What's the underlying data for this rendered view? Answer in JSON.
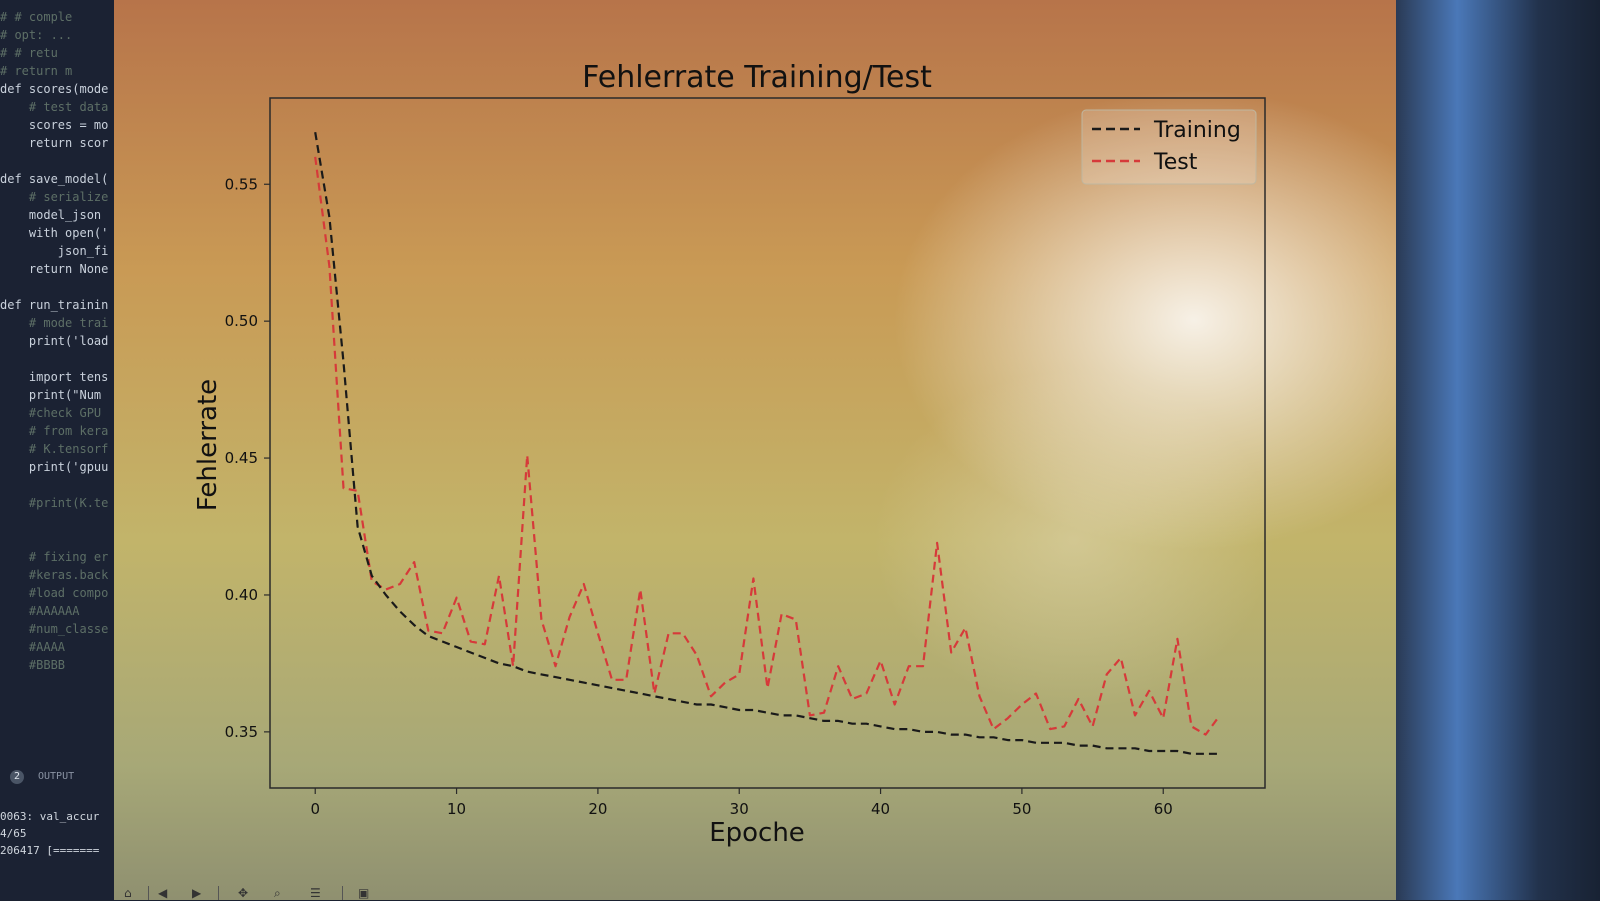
{
  "editor": {
    "lines": [
      {
        "text": "# # comple",
        "kind": "comment"
      },
      {
        "text": "# opt: ...",
        "kind": "comment"
      },
      {
        "text": "# # retu",
        "kind": "comment"
      },
      {
        "text": "# return m",
        "kind": "comment"
      },
      {
        "text": "def scores(mode",
        "kind": "code"
      },
      {
        "text": "    # test data",
        "kind": "comment"
      },
      {
        "text": "    scores = mo",
        "kind": "code"
      },
      {
        "text": "    return scor",
        "kind": "code"
      },
      {
        "text": "",
        "kind": "code"
      },
      {
        "text": "def save_model(",
        "kind": "code"
      },
      {
        "text": "    # serialize",
        "kind": "comment"
      },
      {
        "text": "    model_json ",
        "kind": "code"
      },
      {
        "text": "    with open('",
        "kind": "code"
      },
      {
        "text": "        json_fi",
        "kind": "code"
      },
      {
        "text": "    return None",
        "kind": "code"
      },
      {
        "text": "",
        "kind": "code"
      },
      {
        "text": "def run_trainin",
        "kind": "code"
      },
      {
        "text": "    # mode trai",
        "kind": "comment"
      },
      {
        "text": "    print('load",
        "kind": "code"
      },
      {
        "text": "",
        "kind": "code"
      },
      {
        "text": "    import tens",
        "kind": "code"
      },
      {
        "text": "    print(\"Num ",
        "kind": "code"
      },
      {
        "text": "    #check GPU ",
        "kind": "comment"
      },
      {
        "text": "    # from kera",
        "kind": "comment"
      },
      {
        "text": "    # K.tensorf",
        "kind": "comment"
      },
      {
        "text": "    print('gpuu",
        "kind": "code"
      },
      {
        "text": "",
        "kind": "code"
      },
      {
        "text": "    #print(K.te",
        "kind": "comment"
      },
      {
        "text": "",
        "kind": "code"
      },
      {
        "text": "",
        "kind": "code"
      },
      {
        "text": "    # fixing er",
        "kind": "comment"
      },
      {
        "text": "    #keras.back",
        "kind": "comment"
      },
      {
        "text": "    #load compo",
        "kind": "comment"
      },
      {
        "text": "    #AAAAAA",
        "kind": "comment"
      },
      {
        "text": "    #num_classe",
        "kind": "comment"
      },
      {
        "text": "    #AAAA",
        "kind": "comment"
      },
      {
        "text": "    #BBBB",
        "kind": "comment"
      }
    ]
  },
  "panel": {
    "badge": "2",
    "tab_label": "OUTPUT"
  },
  "terminal": {
    "lines": [
      "0063: val_accur",
      "4/65",
      "206417 [======="
    ]
  },
  "chart_data": {
    "type": "line",
    "title": "Fehlerrate Training/Test",
    "xlabel": "Epoche",
    "ylabel": "Fehlerrate",
    "xlim": [
      -3.2,
      67.2
    ],
    "ylim": [
      0.3295,
      0.5815
    ],
    "xticks": [
      0,
      10,
      20,
      30,
      40,
      50,
      60
    ],
    "yticks": [
      0.35,
      0.4,
      0.45,
      0.5,
      0.55
    ],
    "xtick_labels": [
      "0",
      "10",
      "20",
      "30",
      "40",
      "50",
      "60"
    ],
    "ytick_labels": [
      "0.35",
      "0.40",
      "0.45",
      "0.50",
      "0.55"
    ],
    "legend_position": "top-right",
    "grid": false,
    "series": [
      {
        "name": "Training",
        "color": "#1a1a1a",
        "dash": "dashed",
        "x": [
          0,
          1,
          2,
          3,
          4,
          5,
          6,
          7,
          8,
          9,
          10,
          11,
          12,
          13,
          14,
          15,
          16,
          17,
          18,
          19,
          20,
          21,
          22,
          23,
          24,
          25,
          26,
          27,
          28,
          29,
          30,
          31,
          32,
          33,
          34,
          35,
          36,
          37,
          38,
          39,
          40,
          41,
          42,
          43,
          44,
          45,
          46,
          47,
          48,
          49,
          50,
          51,
          52,
          53,
          54,
          55,
          56,
          57,
          58,
          59,
          60,
          61,
          62,
          63,
          64
        ],
        "values": [
          0.569,
          0.538,
          0.485,
          0.425,
          0.407,
          0.4,
          0.394,
          0.389,
          0.385,
          0.383,
          0.381,
          0.379,
          0.377,
          0.375,
          0.374,
          0.372,
          0.371,
          0.37,
          0.369,
          0.368,
          0.367,
          0.366,
          0.365,
          0.364,
          0.363,
          0.362,
          0.361,
          0.36,
          0.36,
          0.359,
          0.358,
          0.358,
          0.357,
          0.356,
          0.356,
          0.355,
          0.354,
          0.354,
          0.353,
          0.353,
          0.352,
          0.351,
          0.351,
          0.35,
          0.35,
          0.349,
          0.349,
          0.348,
          0.348,
          0.347,
          0.347,
          0.346,
          0.346,
          0.346,
          0.345,
          0.345,
          0.344,
          0.344,
          0.344,
          0.343,
          0.343,
          0.343,
          0.342,
          0.342,
          0.342
        ]
      },
      {
        "name": "Test",
        "color": "#d63a3a",
        "dash": "dashed",
        "x": [
          0,
          1,
          2,
          3,
          4,
          5,
          6,
          7,
          8,
          9,
          10,
          11,
          12,
          13,
          14,
          15,
          16,
          17,
          18,
          19,
          20,
          21,
          22,
          23,
          24,
          25,
          26,
          27,
          28,
          29,
          30,
          31,
          32,
          33,
          34,
          35,
          36,
          37,
          38,
          39,
          40,
          41,
          42,
          43,
          44,
          45,
          46,
          47,
          48,
          49,
          50,
          51,
          52,
          53,
          54,
          55,
          56,
          57,
          58,
          59,
          60,
          61,
          62,
          63,
          64
        ],
        "values": [
          0.56,
          0.52,
          0.439,
          0.438,
          0.405,
          0.402,
          0.404,
          0.412,
          0.387,
          0.386,
          0.399,
          0.383,
          0.382,
          0.407,
          0.374,
          0.451,
          0.391,
          0.374,
          0.392,
          0.404,
          0.386,
          0.369,
          0.369,
          0.402,
          0.364,
          0.386,
          0.386,
          0.378,
          0.363,
          0.368,
          0.371,
          0.406,
          0.366,
          0.393,
          0.391,
          0.356,
          0.357,
          0.374,
          0.362,
          0.364,
          0.376,
          0.36,
          0.374,
          0.374,
          0.419,
          0.379,
          0.388,
          0.363,
          0.351,
          0.355,
          0.36,
          0.364,
          0.351,
          0.352,
          0.362,
          0.352,
          0.371,
          0.377,
          0.356,
          0.365,
          0.355,
          0.384,
          0.352,
          0.349,
          0.356
        ]
      }
    ]
  }
}
